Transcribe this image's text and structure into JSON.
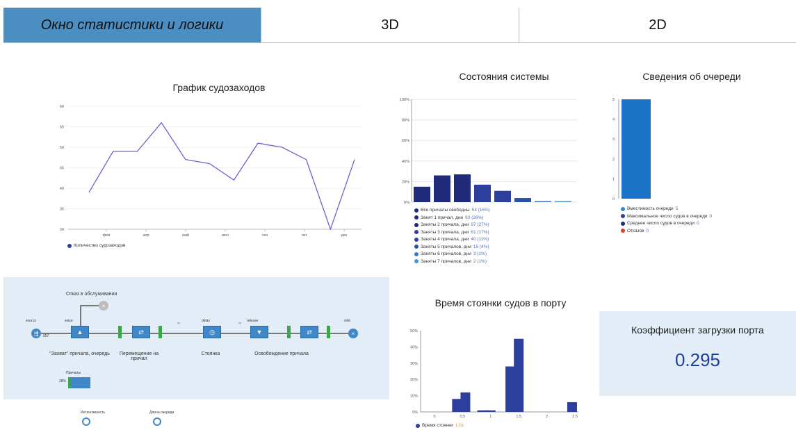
{
  "tabs": [
    {
      "label": "Окно статистики и логики",
      "active": true
    },
    {
      "label": "3D",
      "active": false
    },
    {
      "label": "2D",
      "active": false
    }
  ],
  "colors": {
    "accent": "#4b8ec2",
    "line": "#6a63c9",
    "bar_dark": "#1f2a7a",
    "bar_mid": "#2d3f9c",
    "bar_queue": "#1a73c7",
    "panel": "#e2edf7",
    "value": "#1e3f9a"
  },
  "ship_calls": {
    "title": "График судозаходов",
    "legend": "Количество судозаходов",
    "chart_data": {
      "type": "line",
      "y_ticks": [
        "60",
        "55",
        "50",
        "45",
        "40",
        "35",
        "30"
      ],
      "x_ticks": [
        "фев",
        "апр",
        "май",
        "июл",
        "сен",
        "окт",
        "дек"
      ],
      "ylim": [
        30,
        60
      ],
      "values": [
        39,
        49,
        49,
        56,
        47,
        46,
        42,
        51,
        50,
        47,
        30,
        47
      ]
    }
  },
  "system_states": {
    "title": "Состояния системы",
    "chart_data": {
      "type": "bar",
      "y_ticks": [
        "100%",
        "80%",
        "60%",
        "40%",
        "20%",
        "0%"
      ],
      "ylim": [
        0,
        100
      ],
      "values": [
        15,
        26,
        27,
        17,
        11,
        4,
        1,
        1
      ]
    },
    "legend": [
      {
        "label": "Все причалы свободны",
        "value": "53 (15%)",
        "color": "#1f2a7a"
      },
      {
        "label": "Занят 1 причал, дни",
        "value": "93 (26%)",
        "color": "#1f2a7a"
      },
      {
        "label": "Заняты 2 причала, дни",
        "value": "97 (27%)",
        "color": "#1f2a7a"
      },
      {
        "label": "Заняты 3 причала, дни",
        "value": "61 (17%)",
        "color": "#2d3f9c"
      },
      {
        "label": "Заняты 4 причала, дни",
        "value": "40 (11%)",
        "color": "#2d3f9c"
      },
      {
        "label": "Заняты 5 причалов, дни",
        "value": "15 (4%)",
        "color": "#2d4fae"
      },
      {
        "label": "Заняты 6 причалов, дни",
        "value": "3 (1%)",
        "color": "#3a78c8"
      },
      {
        "label": "Заняты 7 причалов, дни",
        "value": "2 (1%)",
        "color": "#4a92d6"
      }
    ]
  },
  "queue_info": {
    "title": "Сведения об очереди",
    "chart_data": {
      "type": "bar",
      "y_ticks": [
        "5",
        "4",
        "3",
        "2",
        "1",
        "0"
      ],
      "ylim": [
        0,
        5
      ],
      "values": [
        5
      ]
    },
    "legend": [
      {
        "label": "Вместимость очереди",
        "value": "5",
        "color": "#2b8ad6"
      },
      {
        "label": "Максимальное число судов в очереди",
        "value": "0",
        "color": "#2d3f9c"
      },
      {
        "label": "Среднее число судов в очереди",
        "value": "0",
        "color": "#1f2a7a"
      },
      {
        "label": "Отказов",
        "value": "0",
        "color": "#e53935"
      }
    ]
  },
  "stay_time": {
    "title": "Время стоянки судов в порту",
    "legend": "Время стоянки",
    "legend_value": "1.01",
    "chart_data": {
      "type": "bar",
      "y_ticks": [
        "50%",
        "40%",
        "30%",
        "20%",
        "10%",
        "0%"
      ],
      "x_ticks": [
        "0",
        "0.5",
        "1",
        "1.5",
        "2",
        "2.5"
      ],
      "ylim": [
        0,
        50
      ],
      "x": [
        0.4,
        0.55,
        0.85,
        1.0,
        1.35,
        1.5,
        2.45
      ],
      "values": [
        8,
        12,
        1,
        1,
        28,
        45,
        6
      ]
    }
  },
  "flow": {
    "refusal_label": "Отказ в обслуживании",
    "source_label": "source",
    "seize_label": "seize",
    "delay_label": "delay",
    "release_label": "release",
    "sink_label": "sink",
    "block_labels": [
      "\"Захват\" причала, очередь",
      "Перемещение на причал",
      "Стоянка",
      "Освобождение причала"
    ],
    "berths_label": "Причалы",
    "berths_value": "28%",
    "intensity_label": "Интенсивность",
    "queue_length_label": "Длина очереди",
    "flow_value": "557"
  },
  "port_load": {
    "title": "Коэффициент загрузки порта",
    "value": "0.295"
  }
}
